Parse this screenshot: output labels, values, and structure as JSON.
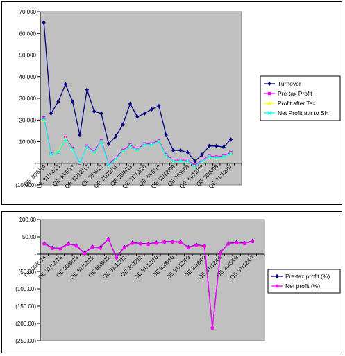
{
  "chart_data": [
    {
      "type": "line",
      "title": "",
      "xlabel": "",
      "ylabel": "",
      "ylim": [
        -10000,
        70000
      ],
      "ytick_labels": [
        "70,000",
        "60,000",
        "50,000",
        "40,000",
        "30,000",
        "20,000",
        "10,000",
        "-",
        "(10,000)"
      ],
      "ytick_values": [
        70000,
        60000,
        50000,
        40000,
        30000,
        20000,
        10000,
        0,
        -10000
      ],
      "categories": [
        "QE 30/6/14",
        "QE 31/3/14",
        "QE 31/12/13",
        "QE 30/9/13",
        "QE 30/6/13",
        "QE 31/3/13",
        "QE 31/12/12",
        "QE 30/9/12",
        "QE 30/6/12",
        "QE 31/3/12",
        "QE 31/12/11",
        "QE 30/9/11",
        "QE 30/6/11",
        "QE 31/3/11",
        "QE 31/12/10",
        "QE 30/9/10",
        "QE 30/6/10",
        "QE 31/3/10",
        "QE 31/12/09",
        "QE 30/9/09",
        "QE 30/6/09",
        "QE 31/3/09",
        "QE 31/12/08",
        "QE 30/9/08",
        "QE 30/6/08",
        "QE 31/3/08",
        "QE 31/12/07",
        "QE 30/9/07"
      ],
      "category_labels_shown": [
        "QE 30/6/14",
        "QE 31/12/13",
        "QE 30/6/13",
        "QE 31/12/12",
        "QE 30/6/12",
        "QE 31/12/11",
        "QE 30/6/11",
        "QE 31/12/10",
        "QE 30/6/10",
        "QE 31/12/09",
        "QE 30/6/09",
        "QE 31/12/08",
        "QE 30/6/08",
        "QE 31/12/07"
      ],
      "legend_position": "right",
      "grid": false,
      "series": [
        {
          "name": "Turnover",
          "color": "#000080",
          "marker": "diamond",
          "values": [
            65000,
            23000,
            28500,
            36500,
            28500,
            13000,
            34000,
            24000,
            23000,
            9000,
            12500,
            18000,
            27500,
            21500,
            23000,
            25000,
            26500,
            13000,
            6000,
            6000,
            5000,
            1000,
            4000,
            8000,
            8000,
            7500,
            11000,
            null
          ]
        },
        {
          "name": "Pre-tax Profit",
          "color": "#ff00ff",
          "marker": "square",
          "values": [
            21000,
            4500,
            5000,
            12000,
            7000,
            0,
            8000,
            5500,
            10500,
            -500,
            2500,
            6000,
            8500,
            6500,
            9000,
            9000,
            10500,
            4000,
            1500,
            1500,
            1500,
            -1000,
            1500,
            3500,
            3000,
            3500,
            5000,
            null
          ]
        },
        {
          "name": "Profit after Tax",
          "color": "#ffff00",
          "marker": "triangle",
          "values": [
            20000,
            4000,
            5500,
            11500,
            6500,
            500,
            7500,
            5000,
            10000,
            -1000,
            2000,
            5500,
            8000,
            6000,
            8500,
            8500,
            10000,
            3500,
            1000,
            1000,
            1000,
            -1500,
            1000,
            3000,
            2500,
            3000,
            4500,
            null
          ]
        },
        {
          "name": "Net Profit attr to SH",
          "color": "#00ffff",
          "marker": "x",
          "values": [
            20500,
            4000,
            5000,
            11000,
            6500,
            500,
            7500,
            5000,
            10000,
            -1000,
            2000,
            5500,
            8000,
            6000,
            8500,
            8500,
            10000,
            3500,
            1000,
            1000,
            1000,
            -1500,
            1000,
            3000,
            2500,
            3000,
            4500,
            null
          ]
        }
      ]
    },
    {
      "type": "line",
      "title": "",
      "xlabel": "",
      "ylabel": "",
      "ylim": [
        -250,
        100
      ],
      "ytick_labels": [
        "100.00",
        "50.00",
        "-",
        "(50.00)",
        "(100.00)",
        "(150.00)",
        "(200.00)",
        "(250.00)"
      ],
      "ytick_values": [
        100,
        50,
        0,
        -50,
        -100,
        -150,
        -200,
        -250
      ],
      "categories": [
        "QE 30/6/14",
        "QE 31/3/14",
        "QE 31/12/13",
        "QE 30/9/13",
        "QE 30/6/13",
        "QE 31/3/13",
        "QE 31/12/12",
        "QE 30/9/12",
        "QE 30/6/12",
        "QE 31/3/12",
        "QE 31/12/11",
        "QE 30/9/11",
        "QE 30/6/11",
        "QE 31/3/11",
        "QE 31/12/10",
        "QE 30/9/10",
        "QE 30/6/10",
        "QE 31/3/10",
        "QE 31/12/09",
        "QE 30/9/09",
        "QE 30/6/09",
        "QE 31/3/09",
        "QE 31/12/08",
        "QE 30/9/08",
        "QE 30/6/08",
        "QE 31/3/08",
        "QE 31/12/07",
        "QE 30/9/07"
      ],
      "category_labels_shown": [
        "QE 30/6/14",
        "QE 31/12/13",
        "QE 30/6/13",
        "QE 31/12/12",
        "QE 30/6/12",
        "QE 31/12/11",
        "QE 30/6/11",
        "QE 31/12/10",
        "QE 30/6/10",
        "QE 31/12/09",
        "QE 30/6/09",
        "QE 31/12/08",
        "QE 30/6/08",
        "QE 31/12/07"
      ],
      "legend_position": "right",
      "grid": false,
      "series": [
        {
          "name": "Pre-tax profit (%)",
          "color": "#000080",
          "marker": "diamond",
          "values": [
            31,
            18,
            17,
            30,
            25,
            3,
            21,
            19,
            44,
            -9,
            20,
            33,
            31,
            30,
            33,
            36,
            36,
            35,
            20,
            27,
            24,
            -212,
            5,
            31,
            34,
            32,
            38,
            null
          ]
        },
        {
          "name": "Net profit (%)",
          "color": "#ff00ff",
          "marker": "square",
          "values": [
            30,
            17,
            16,
            29,
            24,
            2,
            20,
            18,
            43,
            -10,
            19,
            32,
            30,
            29,
            32,
            35,
            35,
            34,
            19,
            26,
            23,
            -213,
            4,
            30,
            33,
            31,
            37,
            null
          ]
        }
      ]
    }
  ]
}
